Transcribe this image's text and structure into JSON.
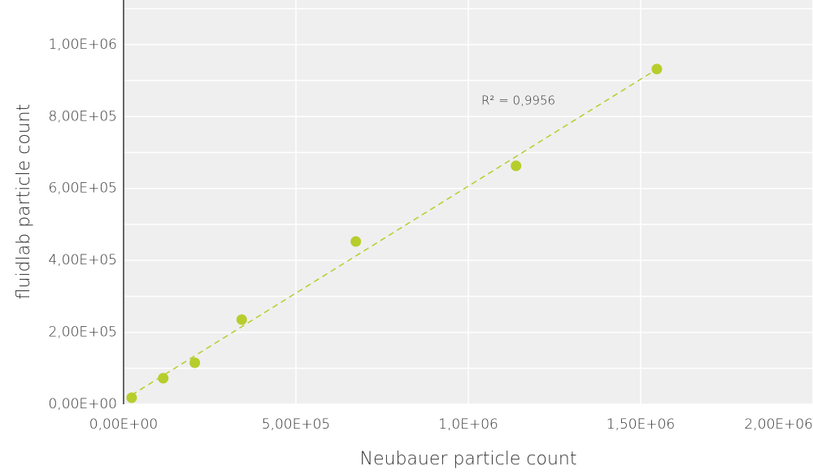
{
  "chart_data": {
    "type": "scatter",
    "x_label": "Neubauer particle count",
    "y_label": "fluidlab particle count",
    "annotation": "R² = 0,9956",
    "series": [
      {
        "name": "fluidlab",
        "color": "#b7cd2c",
        "x": [
          23500,
          115000,
          206600,
          342700,
          673700,
          1138500,
          1547000
        ],
        "values": [
          18100,
          72400,
          115400,
          235300,
          452500,
          662900,
          932100
        ]
      }
    ],
    "trendline": true,
    "xlim": [
      0,
      2000000
    ],
    "ylim": [
      0,
      1124000
    ],
    "xticks": [
      {
        "value": 0,
        "label": "0,00E+00"
      },
      {
        "value": 500000,
        "label": "5,00E+05"
      },
      {
        "value": 1000000,
        "label": "1,0E+06"
      },
      {
        "value": 1500000,
        "label": "1,50E+06"
      },
      {
        "value": 2000000,
        "label": "2,00E+06"
      }
    ],
    "yticks": [
      {
        "value": 0,
        "label": "0,00E+00"
      },
      {
        "value": 200000,
        "label": "2,00E+05"
      },
      {
        "value": 400000,
        "label": "4,00E+05"
      },
      {
        "value": 600000,
        "label": "6,00E+05"
      },
      {
        "value": 800000,
        "label": "8,00E+05"
      },
      {
        "value": 1000000,
        "label": "1,00E+06"
      }
    ],
    "y_minor_ticks": [
      100000,
      300000,
      500000,
      700000,
      900000,
      1100000
    ],
    "grid": true
  }
}
